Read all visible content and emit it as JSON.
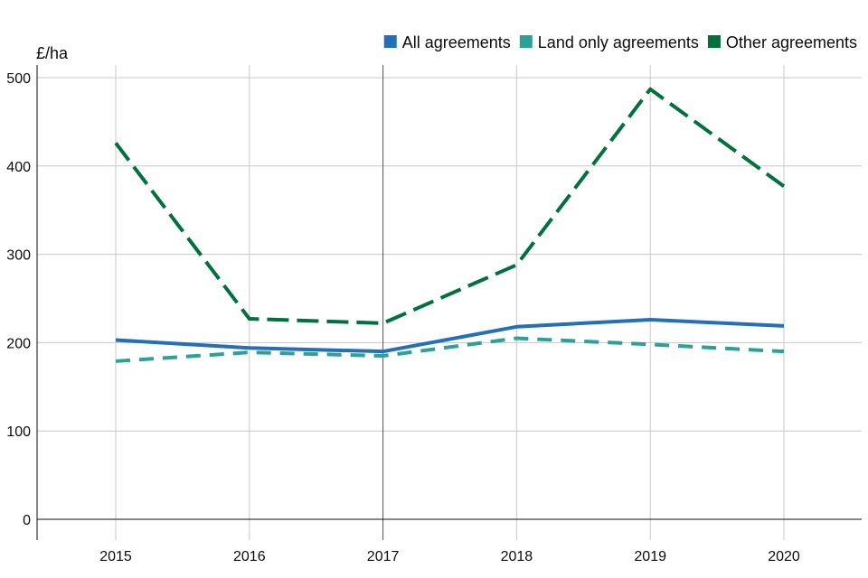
{
  "chart_data": {
    "type": "line",
    "title": "",
    "xlabel": "",
    "ylabel": "£/ha",
    "ylim": [
      0,
      500
    ],
    "yticks": [
      0,
      100,
      200,
      300,
      400,
      500
    ],
    "x": [
      "2015",
      "2016",
      "2017",
      "2018",
      "2019",
      "2020"
    ],
    "grid": true,
    "legend_position": "top-right",
    "series": [
      {
        "name": "All agreements",
        "color": "#2470b8",
        "style": "solid",
        "values": [
          203,
          194,
          190,
          218,
          226,
          219
        ]
      },
      {
        "name": "Land only agreements",
        "color": "#2ca196",
        "style": "dashed",
        "values": [
          179,
          189,
          185,
          205,
          198,
          190
        ]
      },
      {
        "name": "Other agreements",
        "color": "#00703c",
        "style": "dashed",
        "values": [
          426,
          227,
          222,
          288,
          487,
          377
        ]
      }
    ]
  }
}
